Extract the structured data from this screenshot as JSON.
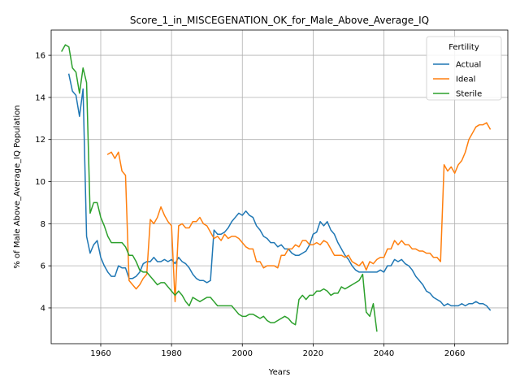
{
  "chart_data": {
    "type": "line",
    "title": "Score_1_in_MISCEGENATION_OK_for_Male_Above_Average_IQ",
    "xlabel": "Years",
    "ylabel": "% of Male Above_Average_IQ Population",
    "xlim": [
      1946,
      2075
    ],
    "ylim": [
      2.3,
      17.2
    ],
    "xticks": [
      1960,
      1980,
      2000,
      2020,
      2040,
      2060
    ],
    "yticks": [
      4,
      6,
      8,
      10,
      12,
      14,
      16
    ],
    "grid": true,
    "legend": {
      "title": "Fertility",
      "placement": "top-right"
    },
    "series": [
      {
        "name": "Actual",
        "color": "#1f77b4",
        "x": [
          1951,
          1952,
          1953,
          1954,
          1955,
          1956,
          1957,
          1958,
          1959,
          1960,
          1961,
          1962,
          1963,
          1964,
          1965,
          1966,
          1967,
          1968,
          1969,
          1970,
          1971,
          1972,
          1973,
          1974,
          1975,
          1976,
          1977,
          1978,
          1979,
          1980,
          1981,
          1982,
          1983,
          1984,
          1985,
          1986,
          1987,
          1988,
          1989,
          1990,
          1991,
          1992,
          1993,
          1994,
          1995,
          1996,
          1997,
          1998,
          1999,
          2000,
          2001,
          2002,
          2003,
          2004,
          2005,
          2006,
          2007,
          2008,
          2009,
          2010,
          2011,
          2012,
          2013,
          2014,
          2015,
          2016,
          2017,
          2018,
          2019,
          2020,
          2021,
          2022,
          2023,
          2024,
          2025,
          2026,
          2027,
          2028,
          2029,
          2030,
          2031,
          2032,
          2033,
          2034,
          2035,
          2036,
          2037,
          2038,
          2039,
          2040,
          2041,
          2042,
          2043,
          2044,
          2045,
          2046,
          2047,
          2048,
          2049,
          2050,
          2051,
          2052,
          2053,
          2054,
          2055,
          2056,
          2057,
          2058,
          2059,
          2060,
          2061,
          2062,
          2063,
          2064,
          2065,
          2066,
          2067,
          2068,
          2069,
          2070
        ],
        "y": [
          15.1,
          14.3,
          14.1,
          13.1,
          14.4,
          7.4,
          6.6,
          7.0,
          7.2,
          6.4,
          6.0,
          5.7,
          5.5,
          5.5,
          6.0,
          5.9,
          5.9,
          5.4,
          5.4,
          5.5,
          5.7,
          6.1,
          6.2,
          6.2,
          6.4,
          6.2,
          6.2,
          6.3,
          6.2,
          6.3,
          6.1,
          6.4,
          6.2,
          6.1,
          5.9,
          5.6,
          5.4,
          5.3,
          5.3,
          5.2,
          5.3,
          7.7,
          7.5,
          7.5,
          7.6,
          7.8,
          8.1,
          8.3,
          8.5,
          8.4,
          8.6,
          8.4,
          8.3,
          7.9,
          7.7,
          7.4,
          7.3,
          7.1,
          7.1,
          6.9,
          7.0,
          6.8,
          6.8,
          6.6,
          6.5,
          6.5,
          6.6,
          6.7,
          7.0,
          7.5,
          7.6,
          8.1,
          7.9,
          8.1,
          7.7,
          7.5,
          7.1,
          6.8,
          6.5,
          6.3,
          6.0,
          5.8,
          5.7,
          5.7,
          5.7,
          5.7,
          5.7,
          5.7,
          5.8,
          5.7,
          6.0,
          6.0,
          6.3,
          6.2,
          6.3,
          6.1,
          6.0,
          5.8,
          5.5,
          5.3,
          5.1,
          4.8,
          4.7,
          4.5,
          4.4,
          4.3,
          4.1,
          4.2,
          4.1,
          4.1,
          4.1,
          4.2,
          4.1,
          4.2,
          4.2,
          4.3,
          4.2,
          4.2,
          4.1,
          3.9
        ]
      },
      {
        "name": "Ideal",
        "color": "#ff7f0e",
        "x": [
          1962,
          1963,
          1964,
          1965,
          1966,
          1967,
          1968,
          1969,
          1970,
          1971,
          1972,
          1973,
          1974,
          1975,
          1976,
          1977,
          1978,
          1979,
          1980,
          1981,
          1982,
          1983,
          1984,
          1985,
          1986,
          1987,
          1988,
          1989,
          1990,
          1991,
          1992,
          1993,
          1994,
          1995,
          1996,
          1997,
          1998,
          1999,
          2000,
          2001,
          2002,
          2003,
          2004,
          2005,
          2006,
          2007,
          2008,
          2009,
          2010,
          2011,
          2012,
          2013,
          2014,
          2015,
          2016,
          2017,
          2018,
          2019,
          2020,
          2021,
          2022,
          2023,
          2024,
          2025,
          2026,
          2027,
          2028,
          2029,
          2030,
          2031,
          2032,
          2033,
          2034,
          2035,
          2036,
          2037,
          2038,
          2039,
          2040,
          2041,
          2042,
          2043,
          2044,
          2045,
          2046,
          2047,
          2048,
          2049,
          2050,
          2051,
          2052,
          2053,
          2054,
          2055,
          2056,
          2057,
          2058,
          2059,
          2060,
          2061,
          2062,
          2063,
          2064,
          2065,
          2066,
          2067,
          2068,
          2069,
          2070
        ],
        "y": [
          11.3,
          11.4,
          11.1,
          11.4,
          10.5,
          10.3,
          5.3,
          5.1,
          4.9,
          5.1,
          5.4,
          5.6,
          8.2,
          8.0,
          8.3,
          8.8,
          8.4,
          8.1,
          7.9,
          4.3,
          7.9,
          8.0,
          7.8,
          7.8,
          8.1,
          8.1,
          8.3,
          8.0,
          7.9,
          7.6,
          7.3,
          7.4,
          7.2,
          7.5,
          7.3,
          7.4,
          7.4,
          7.3,
          7.1,
          6.9,
          6.8,
          6.8,
          6.2,
          6.2,
          5.9,
          6.0,
          6.0,
          6.0,
          5.9,
          6.5,
          6.5,
          6.8,
          6.8,
          7.0,
          6.9,
          7.2,
          7.2,
          7.0,
          7.0,
          7.1,
          7.0,
          7.2,
          7.1,
          6.8,
          6.5,
          6.5,
          6.5,
          6.4,
          6.5,
          6.2,
          6.1,
          6.0,
          6.2,
          5.8,
          6.2,
          6.1,
          6.3,
          6.4,
          6.4,
          6.8,
          6.8,
          7.2,
          7.0,
          7.2,
          7.0,
          7.0,
          6.8,
          6.8,
          6.7,
          6.7,
          6.6,
          6.6,
          6.4,
          6.4,
          6.2,
          10.8,
          10.5,
          10.7,
          10.4,
          10.8,
          11.0,
          11.4,
          12.0,
          12.3,
          12.6,
          12.7,
          12.7,
          12.8,
          12.5
        ]
      },
      {
        "name": "Sterile",
        "color": "#2ca02c",
        "x": [
          1949,
          1950,
          1951,
          1952,
          1953,
          1954,
          1955,
          1956,
          1957,
          1958,
          1959,
          1960,
          1961,
          1962,
          1963,
          1964,
          1965,
          1966,
          1967,
          1968,
          1969,
          1970,
          1971,
          1972,
          1973,
          1974,
          1975,
          1976,
          1977,
          1978,
          1979,
          1980,
          1981,
          1982,
          1983,
          1984,
          1985,
          1986,
          1987,
          1988,
          1989,
          1990,
          1991,
          1992,
          1993,
          1994,
          1995,
          1996,
          1997,
          1998,
          1999,
          2000,
          2001,
          2002,
          2003,
          2004,
          2005,
          2006,
          2007,
          2008,
          2009,
          2010,
          2011,
          2012,
          2013,
          2014,
          2015,
          2016,
          2017,
          2018,
          2019,
          2020,
          2021,
          2022,
          2023,
          2024,
          2025,
          2026,
          2027,
          2028,
          2029,
          2030,
          2031,
          2032,
          2033,
          2034,
          2035,
          2036,
          2037,
          2038
        ],
        "y": [
          16.2,
          16.5,
          16.4,
          15.4,
          15.2,
          14.2,
          15.4,
          14.7,
          8.5,
          9.0,
          9.0,
          8.3,
          7.9,
          7.4,
          7.1,
          7.1,
          7.1,
          7.1,
          6.9,
          6.5,
          6.5,
          6.2,
          5.8,
          5.7,
          5.7,
          5.5,
          5.3,
          5.1,
          5.2,
          5.2,
          5.0,
          4.8,
          4.6,
          4.8,
          4.6,
          4.3,
          4.1,
          4.5,
          4.4,
          4.3,
          4.4,
          4.5,
          4.5,
          4.3,
          4.1,
          4.1,
          4.1,
          4.1,
          4.1,
          3.9,
          3.7,
          3.6,
          3.6,
          3.7,
          3.7,
          3.6,
          3.5,
          3.6,
          3.4,
          3.3,
          3.3,
          3.4,
          3.5,
          3.6,
          3.5,
          3.3,
          3.2,
          4.4,
          4.6,
          4.4,
          4.6,
          4.6,
          4.8,
          4.8,
          4.9,
          4.8,
          4.6,
          4.7,
          4.7,
          5.0,
          4.9,
          5.0,
          5.1,
          5.2,
          5.3,
          5.6,
          3.8,
          3.6,
          4.2,
          2.9
        ]
      }
    ]
  }
}
